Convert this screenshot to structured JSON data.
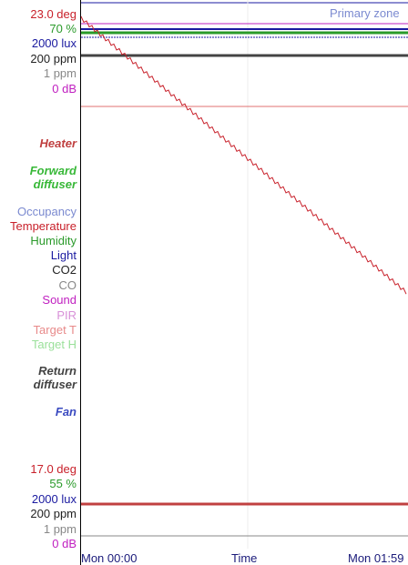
{
  "colors": {
    "temperature": "#c8202a",
    "humidity": "#2a9a2a",
    "light": "#1a1aa0",
    "co2": "#222222",
    "co": "#888888",
    "sound": "#c020c0",
    "occupancy": "#7b8ad0",
    "target_t": "#e88a8a",
    "target_h": "#9ae09a",
    "heater": "#c04040",
    "forward_diffuser": "#38b838",
    "return_diffuser": "#444444",
    "fan": "#3a4ac0"
  },
  "top_scale": {
    "temperature": "23.0 deg",
    "humidity": "70 %",
    "light": "2000 lux",
    "co2": "200 ppm",
    "co": "1 ppm",
    "sound": "0 dB"
  },
  "bottom_scale": {
    "temperature": "17.0 deg",
    "humidity": "55 %",
    "light": "2000 lux",
    "co2": "200 ppm",
    "co": "1 ppm",
    "sound": "0 dB"
  },
  "zones": {
    "heater": "Heater",
    "forward_diffuser": "Forward\ndiffuser",
    "return_diffuser": "Return\ndiffuser",
    "fan": "Fan"
  },
  "legend": [
    "Occupancy",
    "Temperature",
    "Humidity",
    "Light",
    "CO2",
    "CO",
    "Sound",
    "PIR",
    "Target T",
    "Target H"
  ],
  "plot": {
    "zone_label": "Primary zone"
  },
  "x_axis": {
    "ticks": [
      "Mon 00:00",
      "Time",
      "Mon 01:59"
    ]
  },
  "chart_data": {
    "type": "line",
    "x": [
      "Mon 00:00",
      "Mon 01:59"
    ],
    "series": [
      {
        "name": "Temperature",
        "start": 23.0,
        "end": 19.8
      }
    ]
  }
}
